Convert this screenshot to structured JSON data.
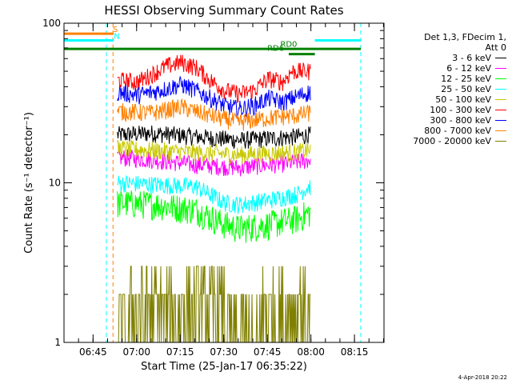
{
  "chart_data": {
    "type": "line",
    "title": "HESSI Observing Summary Count Rates",
    "xlabel": "Start Time (25-Jan-17 06:35:22)",
    "ylabel": "Count Rate (s⁻¹ detector⁻¹)",
    "yscale": "log",
    "ylim": [
      1,
      100
    ],
    "y_tick_labels": [
      "1",
      "10",
      "100"
    ],
    "xlim_minutes": [
      -0.37,
      109.8
    ],
    "x_tick_labels": [
      "06:45",
      "07:00",
      "07:15",
      "07:30",
      "07:45",
      "08:00",
      "08:15"
    ],
    "x_tick_minutes": [
      9.63,
      24.63,
      39.63,
      54.63,
      69.63,
      84.63,
      99.63
    ],
    "grid": false,
    "legend_position": "right",
    "series": [
      {
        "name": "3 - 6 keV",
        "color": "#000000",
        "x": [
          18,
          30,
          45,
          60,
          70,
          80,
          84
        ],
        "values": [
          20,
          20.5,
          19.5,
          18.5,
          19,
          19.5,
          20
        ]
      },
      {
        "name": "6 - 12 keV",
        "color": "#ff00ff",
        "x": [
          18,
          30,
          45,
          60,
          70,
          80,
          84
        ],
        "values": [
          14.5,
          14,
          13,
          12.5,
          13,
          13.5,
          14
        ]
      },
      {
        "name": "12 - 25 keV",
        "color": "#00ff00",
        "x": [
          18,
          30,
          45,
          55,
          60,
          70,
          80,
          84
        ],
        "values": [
          7.5,
          7.4,
          6.8,
          5.5,
          5.2,
          5.5,
          6,
          6.5
        ]
      },
      {
        "name": "25 - 50 keV",
        "color": "#00ffff",
        "x": [
          18,
          30,
          45,
          55,
          60,
          70,
          80,
          84
        ],
        "values": [
          10,
          9.8,
          9.5,
          7.5,
          7.3,
          7.8,
          8.5,
          9.5
        ]
      },
      {
        "name": "50 - 100 keV",
        "color": "#c8c800",
        "x": [
          18,
          30,
          45,
          60,
          70,
          80,
          84
        ],
        "values": [
          16.5,
          16,
          15.5,
          15,
          15.3,
          15.6,
          16
        ]
      },
      {
        "name": "100 - 300 keV",
        "color": "#ff0000",
        "x": [
          18,
          25,
          30,
          35,
          40,
          45,
          50,
          55,
          60,
          65,
          70,
          75,
          78
        ],
        "values": [
          44,
          43,
          48,
          54,
          57,
          53,
          44,
          38,
          36,
          38,
          45,
          43,
          50
        ]
      },
      {
        "name": "300 - 800 keV",
        "color": "#0000ff",
        "x": [
          18,
          25,
          30,
          35,
          40,
          45,
          50,
          55,
          60,
          65,
          70,
          75,
          80,
          84
        ],
        "values": [
          37,
          35.5,
          37,
          39,
          41.5,
          38,
          34,
          30.5,
          29,
          30.5,
          34,
          32,
          35,
          37
        ]
      },
      {
        "name": "800 - 7000 keV",
        "color": "#ff8000",
        "x": [
          18,
          30,
          40,
          45,
          55,
          60,
          70,
          80,
          84
        ],
        "values": [
          28,
          27.5,
          30,
          28,
          25,
          24,
          25.5,
          26.5,
          27.5
        ]
      },
      {
        "name": "7000 - 20000 keV",
        "color": "#808000",
        "x": [
          20,
          30,
          40,
          50,
          60,
          70,
          80,
          84
        ],
        "values": [
          1.5,
          1.4,
          1.6,
          1.3,
          1.25,
          1.5,
          1.8,
          2.0
        ]
      }
    ],
    "annotations": [
      {
        "text": "S",
        "x_minutes": 17.3,
        "y": 88,
        "color": "#ff8000"
      },
      {
        "text": "N",
        "x_minutes": 17.8,
        "y": 80,
        "color": "#00ffff"
      },
      {
        "text": "RD6",
        "x_minutes": 72.5,
        "y": 67,
        "color": "#008000"
      },
      {
        "text": "RD0",
        "x_minutes": 77,
        "y": 71,
        "color": "#008000"
      }
    ],
    "flag_bars": [
      {
        "label": "S",
        "color": "#ff8000",
        "x_start": -0.37,
        "x_end": 16.7,
        "y": 86
      },
      {
        "label": "N",
        "color": "#00ffff",
        "x_start": -0.37,
        "x_end": 16.7,
        "y": 78
      },
      {
        "label": "N",
        "color": "#00ffff",
        "x_start": 86,
        "x_end": 101.8,
        "y": 78
      },
      {
        "label": "RD0",
        "color": "#008000",
        "x_start": -0.37,
        "x_end": 101.8,
        "y": 69
      },
      {
        "label": "RD6",
        "color": "#008000",
        "x_start": 77,
        "x_end": 86,
        "y": 64
      }
    ],
    "vlines": [
      {
        "x_minutes": 14.2,
        "color": "#00ffff"
      },
      {
        "x_minutes": 16.5,
        "color": "#ff8000"
      },
      {
        "x_minutes": 101.8,
        "color": "#00ffff"
      }
    ]
  },
  "legend_header": [
    "Det 1,3, FDecim 1,",
    "Att 0"
  ],
  "datestamp": "4-Apr-2018 20:22"
}
